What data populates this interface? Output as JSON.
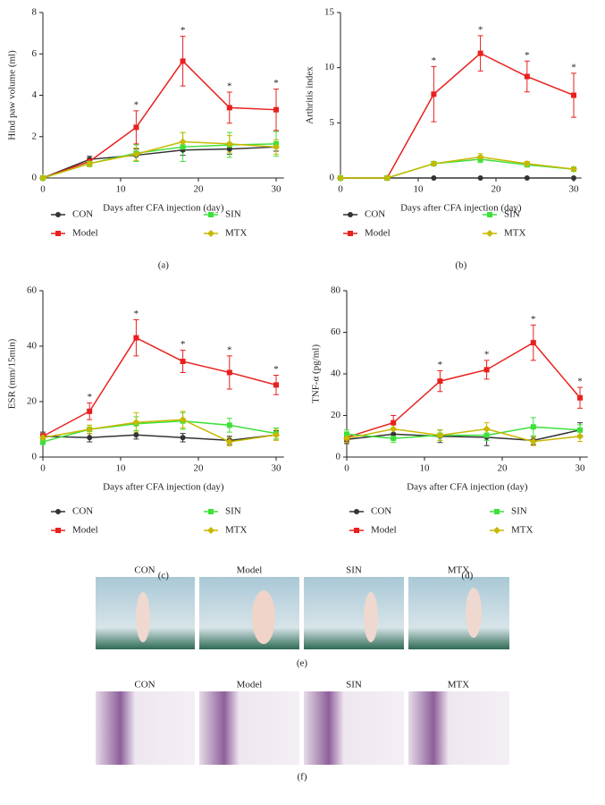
{
  "chart_data": [
    {
      "type": "line",
      "panel_label": "(a)",
      "ylabel": "Hind paw volume (ml)",
      "xlabel": "Days after CFA injection (day)",
      "x": [
        0,
        6,
        12,
        18,
        24,
        30
      ],
      "xlim": [
        0,
        31
      ],
      "xticks": [
        0,
        10,
        20,
        30
      ],
      "ylim": [
        0,
        8
      ],
      "yticks": [
        0,
        2,
        4,
        6,
        8
      ],
      "series": [
        {
          "name": "CON",
          "color": "#333333",
          "marker": "circle",
          "values": [
            0,
            0.9,
            1.1,
            1.35,
            1.4,
            1.5
          ],
          "errors": [
            0,
            0.15,
            0.3,
            0.25,
            0.25,
            0.2
          ]
        },
        {
          "name": "Model",
          "color": "#e8201e",
          "marker": "square",
          "values": [
            0,
            0.8,
            2.45,
            5.65,
            3.4,
            3.3
          ],
          "errors": [
            0,
            0.15,
            0.8,
            1.2,
            0.75,
            1.0
          ],
          "significance": [
            null,
            null,
            "*",
            "*",
            "*",
            "*"
          ]
        },
        {
          "name": "SIN",
          "color": "#3ee03a",
          "marker": "square",
          "values": [
            0,
            0.7,
            1.2,
            1.5,
            1.6,
            1.65
          ],
          "errors": [
            0,
            0.15,
            0.4,
            0.7,
            0.6,
            0.6
          ]
        },
        {
          "name": "MTX",
          "color": "#c8b800",
          "marker": "diamond",
          "values": [
            0,
            0.7,
            1.15,
            1.75,
            1.65,
            1.5
          ],
          "errors": [
            0,
            0.15,
            0.3,
            0.45,
            0.4,
            0.35
          ]
        }
      ]
    },
    {
      "type": "line",
      "panel_label": "(b)",
      "ylabel": "Arthritis index",
      "xlabel": "Days after CFA injection (day)",
      "x": [
        0,
        6,
        12,
        18,
        24,
        30
      ],
      "xlim": [
        0,
        31
      ],
      "xticks": [
        0,
        10,
        20,
        30
      ],
      "ylim": [
        0,
        15
      ],
      "yticks": [
        0,
        5,
        10,
        15
      ],
      "series": [
        {
          "name": "CON",
          "color": "#333333",
          "marker": "circle",
          "values": [
            0,
            0,
            0,
            0,
            0,
            0
          ],
          "errors": [
            0,
            0,
            0,
            0,
            0,
            0
          ]
        },
        {
          "name": "Model",
          "color": "#e8201e",
          "marker": "square",
          "values": [
            0,
            0,
            7.6,
            11.3,
            9.2,
            7.5
          ],
          "errors": [
            0,
            0,
            2.5,
            1.6,
            1.4,
            2.0
          ],
          "significance": [
            null,
            null,
            "*",
            "*",
            "*",
            "*"
          ]
        },
        {
          "name": "SIN",
          "color": "#3ee03a",
          "marker": "square",
          "values": [
            0,
            0,
            1.3,
            1.7,
            1.2,
            0.8
          ],
          "errors": [
            0,
            0,
            0.2,
            0.3,
            0.2,
            0.1
          ]
        },
        {
          "name": "MTX",
          "color": "#c8b800",
          "marker": "diamond",
          "values": [
            0,
            0,
            1.3,
            1.9,
            1.3,
            0.8
          ],
          "errors": [
            0,
            0,
            0.2,
            0.3,
            0.2,
            0.1
          ]
        }
      ]
    },
    {
      "type": "line",
      "panel_label": "(c)",
      "ylabel": "ESR (mm/15min)",
      "xlabel": "Days after CFA injection (day)",
      "x": [
        0,
        6,
        12,
        18,
        24,
        30
      ],
      "xlim": [
        0,
        31
      ],
      "xticks": [
        0,
        10,
        20,
        30
      ],
      "ylim": [
        0,
        60
      ],
      "yticks": [
        0,
        20,
        40,
        60
      ],
      "series": [
        {
          "name": "CON",
          "color": "#333333",
          "marker": "circle",
          "values": [
            7.5,
            7,
            8,
            7,
            6,
            8
          ],
          "errors": [
            1.5,
            1.5,
            1.5,
            1.5,
            1.5,
            1.5
          ]
        },
        {
          "name": "Model",
          "color": "#e8201e",
          "marker": "square",
          "values": [
            7.5,
            16.5,
            43,
            34.5,
            30.5,
            26
          ],
          "errors": [
            1,
            3,
            6.5,
            4,
            6,
            3.5
          ],
          "significance": [
            null,
            "*",
            "*",
            "*",
            "*",
            "*"
          ]
        },
        {
          "name": "SIN",
          "color": "#3ee03a",
          "marker": "square",
          "values": [
            5.5,
            10,
            12,
            13,
            11.5,
            8.5
          ],
          "errors": [
            1,
            1.5,
            2.5,
            3,
            2.5,
            2
          ]
        },
        {
          "name": "MTX",
          "color": "#c8b800",
          "marker": "diamond",
          "values": [
            7,
            10,
            12.5,
            13.5,
            5.5,
            8
          ],
          "errors": [
            1,
            1.5,
            3.5,
            3,
            1.5,
            2
          ]
        }
      ]
    },
    {
      "type": "line",
      "panel_label": "(d)",
      "ylabel": "TNF-α (pg/ml)",
      "xlabel": "Days after CFA injection (day)",
      "x": [
        0,
        6,
        12,
        18,
        24,
        30
      ],
      "xlim": [
        0,
        31
      ],
      "xticks": [
        0,
        10,
        20,
        30
      ],
      "ylim": [
        0,
        80
      ],
      "yticks": [
        0,
        20,
        40,
        60,
        80
      ],
      "series": [
        {
          "name": "CON",
          "color": "#333333",
          "marker": "circle",
          "values": [
            8.5,
            11,
            10,
            9.5,
            8,
            13
          ],
          "errors": [
            2,
            2.5,
            3,
            4,
            2,
            3.5
          ]
        },
        {
          "name": "Model",
          "color": "#e8201e",
          "marker": "square",
          "values": [
            9.5,
            16.5,
            36.5,
            42,
            55,
            28.5
          ],
          "errors": [
            2,
            3.5,
            5,
            4.5,
            8.5,
            5
          ],
          "significance": [
            null,
            null,
            "*",
            "*",
            "*",
            "*"
          ]
        },
        {
          "name": "SIN",
          "color": "#3ee03a",
          "marker": "square",
          "values": [
            11,
            9,
            10.5,
            10.5,
            14.5,
            13
          ],
          "errors": [
            2,
            2,
            2.5,
            2.5,
            4.5,
            2.5
          ]
        },
        {
          "name": "MTX",
          "color": "#c8b800",
          "marker": "diamond",
          "values": [
            9,
            13.5,
            10.5,
            13.5,
            7.5,
            10
          ],
          "errors": [
            2,
            2.5,
            2.5,
            3,
            2,
            2.5
          ]
        }
      ]
    }
  ],
  "photo_panels": [
    {
      "panel_label": "(e)",
      "labels": [
        "CON",
        "Model",
        "SIN",
        "MTX"
      ]
    },
    {
      "panel_label": "(f)",
      "labels": [
        "CON",
        "Model",
        "SIN",
        "MTX"
      ]
    }
  ]
}
